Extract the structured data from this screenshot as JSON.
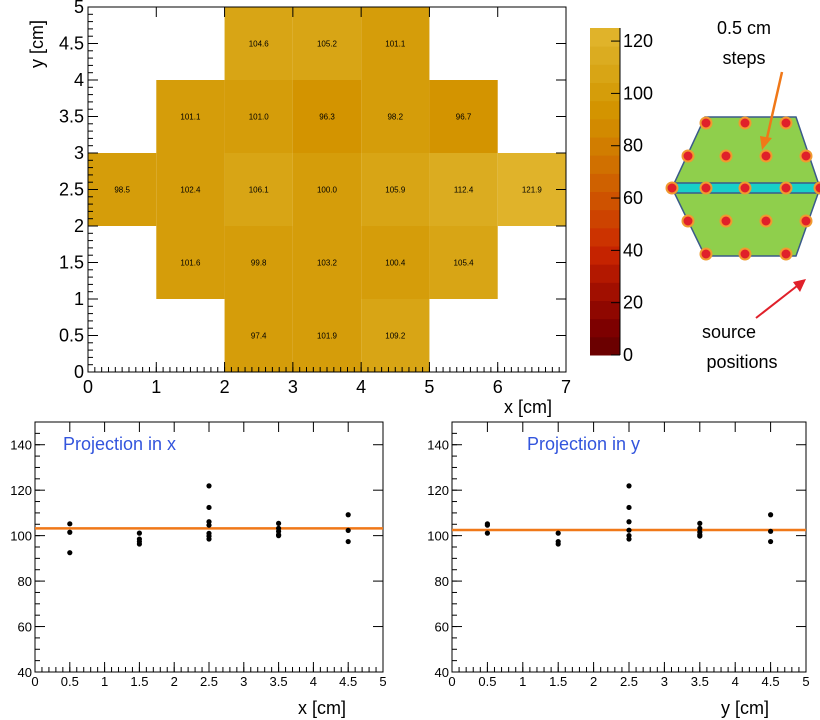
{
  "colors": {
    "fit_line": "#f07818",
    "points": "#000000",
    "projection_title": "#3355dd",
    "hex_fill": "#8fcf4c",
    "hex_edge": "#3a5a8a",
    "strip_fill": "#18d0c8",
    "dot_fill": "#e0202a",
    "dot_ring": "#f09a30",
    "arrow_orange": "#f07818",
    "arrow_red": "#e0202a"
  },
  "palette": [
    "#6b0000",
    "#7d0000",
    "#8f0700",
    "#a10f00",
    "#b31800",
    "#c52300",
    "#cc3300",
    "#cd4300",
    "#ce5200",
    "#cf6100",
    "#d07000",
    "#d17d00",
    "#d28a00",
    "#d39400",
    "#d59d0a",
    "#d8a515",
    "#dbac20",
    "#e0b32a"
  ],
  "annotations": {
    "steps": [
      "0.5 cm",
      "steps"
    ],
    "source": [
      "source",
      "positions"
    ]
  },
  "chart_data": [
    {
      "type": "heatmap",
      "xlabel": "x [cm]",
      "ylabel": "y [cm]",
      "xlim": [
        0,
        7
      ],
      "ylim": [
        0,
        5
      ],
      "xticks": [
        "0",
        "1",
        "2",
        "3",
        "4",
        "5",
        "6",
        "7"
      ],
      "yticks": [
        "0",
        "0.5",
        "1",
        "1.5",
        "2",
        "2.5",
        "3",
        "3.5",
        "4",
        "4.5",
        "5"
      ],
      "zlim": [
        0,
        125
      ],
      "colorbar_ticks": [
        "0",
        "20",
        "40",
        "60",
        "80",
        "100",
        "120"
      ],
      "cells": [
        {
          "x": 2.5,
          "y": 4.5,
          "value": 104.6,
          "label": "104.6"
        },
        {
          "x": 3.5,
          "y": 4.5,
          "value": 105.2,
          "label": "105.2"
        },
        {
          "x": 4.5,
          "y": 4.5,
          "value": 101.1,
          "label": "101.1"
        },
        {
          "x": 1.5,
          "y": 3.5,
          "value": 101.1,
          "label": "101.1"
        },
        {
          "x": 2.5,
          "y": 3.5,
          "value": 101.0,
          "label": "101.0"
        },
        {
          "x": 3.5,
          "y": 3.5,
          "value": 96.3,
          "label": "96.3"
        },
        {
          "x": 4.5,
          "y": 3.5,
          "value": 98.2,
          "label": "98.2"
        },
        {
          "x": 5.5,
          "y": 3.5,
          "value": 96.7,
          "label": "96.7"
        },
        {
          "x": 0.5,
          "y": 2.5,
          "value": 98.5,
          "label": "98.5"
        },
        {
          "x": 1.5,
          "y": 2.5,
          "value": 102.4,
          "label": "102.4"
        },
        {
          "x": 2.5,
          "y": 2.5,
          "value": 106.1,
          "label": "106.1"
        },
        {
          "x": 3.5,
          "y": 2.5,
          "value": 100.0,
          "label": "100.0"
        },
        {
          "x": 4.5,
          "y": 2.5,
          "value": 105.9,
          "label": "105.9"
        },
        {
          "x": 5.5,
          "y": 2.5,
          "value": 112.4,
          "label": "112.4"
        },
        {
          "x": 6.5,
          "y": 2.5,
          "value": 121.9,
          "label": "121.9"
        },
        {
          "x": 1.5,
          "y": 1.5,
          "value": 101.6,
          "label": "101.6"
        },
        {
          "x": 2.5,
          "y": 1.5,
          "value": 99.8,
          "label": "99.8"
        },
        {
          "x": 3.5,
          "y": 1.5,
          "value": 103.2,
          "label": "103.2"
        },
        {
          "x": 4.5,
          "y": 1.5,
          "value": 100.4,
          "label": "100.4"
        },
        {
          "x": 5.5,
          "y": 1.5,
          "value": 105.4,
          "label": "105.4"
        },
        {
          "x": 2.5,
          "y": 0.5,
          "value": 97.4,
          "label": "97.4"
        },
        {
          "x": 3.5,
          "y": 0.5,
          "value": 101.9,
          "label": "101.9"
        },
        {
          "x": 4.5,
          "y": 0.5,
          "value": 109.2,
          "label": "109.2"
        }
      ]
    },
    {
      "type": "scatter",
      "title": "Projection in x",
      "xlabel": "x [cm]",
      "xlim": [
        0,
        5
      ],
      "ylim": [
        40,
        150
      ],
      "xticks": [
        "0",
        "0.5",
        "1",
        "1.5",
        "2",
        "2.5",
        "3",
        "3.5",
        "4",
        "4.5",
        "5"
      ],
      "yticks": [
        "40",
        "60",
        "80",
        "100",
        "120",
        "140"
      ],
      "fit_y": 103.2,
      "points": [
        [
          0.5,
          105.2
        ],
        [
          0.5,
          101.5
        ],
        [
          0.5,
          92.5
        ],
        [
          1.5,
          101.1
        ],
        [
          1.5,
          98.5
        ],
        [
          1.5,
          97.4
        ],
        [
          1.5,
          96.3
        ],
        [
          2.5,
          121.9
        ],
        [
          2.5,
          112.4
        ],
        [
          2.5,
          106.1
        ],
        [
          2.5,
          104.6
        ],
        [
          2.5,
          101.0
        ],
        [
          2.5,
          99.8
        ],
        [
          2.5,
          98.5
        ],
        [
          3.5,
          105.4
        ],
        [
          3.5,
          103.2
        ],
        [
          3.5,
          101.9
        ],
        [
          3.5,
          100.4
        ],
        [
          3.5,
          100.0
        ],
        [
          4.5,
          109.2
        ],
        [
          4.5,
          102.3
        ],
        [
          4.5,
          97.4
        ]
      ]
    },
    {
      "type": "scatter",
      "title": "Projection in y",
      "xlabel": "y [cm]",
      "xlim": [
        0,
        5
      ],
      "ylim": [
        40,
        150
      ],
      "xticks": [
        "0",
        "0.5",
        "1",
        "1.5",
        "2",
        "2.5",
        "3",
        "3.5",
        "4",
        "4.5",
        "5"
      ],
      "yticks": [
        "40",
        "60",
        "80",
        "100",
        "120",
        "140"
      ],
      "fit_y": 102.5,
      "points": [
        [
          0.5,
          105.2
        ],
        [
          0.5,
          104.6
        ],
        [
          0.5,
          101.1
        ],
        [
          1.5,
          101.1
        ],
        [
          1.5,
          97.4
        ],
        [
          1.5,
          96.3
        ],
        [
          2.5,
          121.9
        ],
        [
          2.5,
          112.4
        ],
        [
          2.5,
          106.1
        ],
        [
          2.5,
          102.4
        ],
        [
          2.5,
          100.0
        ],
        [
          2.5,
          98.5
        ],
        [
          3.5,
          105.4
        ],
        [
          3.5,
          103.2
        ],
        [
          3.5,
          101.6
        ],
        [
          3.5,
          100.4
        ],
        [
          3.5,
          99.8
        ],
        [
          4.5,
          109.2
        ],
        [
          4.5,
          101.9
        ],
        [
          4.5,
          97.4
        ]
      ]
    }
  ]
}
